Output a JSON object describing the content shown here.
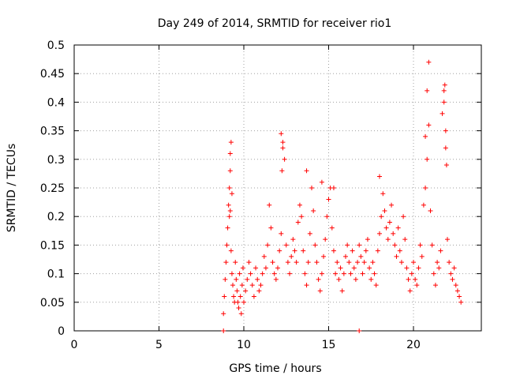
{
  "chart_data": {
    "type": "scatter",
    "title": "Day 249 of 2014, SRMTID for receiver rio1",
    "xlabel": "GPS time / hours",
    "ylabel": "SRMTID / TECUs",
    "xlim": [
      0,
      24
    ],
    "ylim": [
      0,
      0.5
    ],
    "xticks": [
      "0",
      "5",
      "10",
      "15",
      "20"
    ],
    "yticks": [
      "0",
      "0.05",
      "0.1",
      "0.15",
      "0.2",
      "0.25",
      "0.3",
      "0.35",
      "0.4",
      "0.45",
      "0.5"
    ],
    "grid": true,
    "marker": "+",
    "color": "#ff0000",
    "series": [
      {
        "x": [
          8.8,
          8.85,
          8.9,
          8.95,
          9.0,
          9.05,
          9.1,
          9.15,
          9.2,
          9.25,
          9.3,
          9.35,
          9.4,
          9.45,
          9.5,
          9.55,
          9.6,
          9.65,
          9.7,
          9.75,
          9.8,
          9.85,
          9.9,
          9.95,
          10.0,
          10.1,
          10.2,
          10.3,
          10.4,
          10.5,
          10.6,
          10.7,
          10.8,
          10.9,
          11.0,
          11.1,
          11.2,
          11.3,
          11.4,
          11.5,
          11.6,
          11.7,
          11.8,
          11.9,
          12.0,
          12.1,
          12.2,
          12.3,
          12.4,
          12.5,
          12.6,
          12.7,
          12.8,
          12.9,
          13.0,
          13.1,
          13.2,
          13.3,
          13.4,
          13.5,
          13.6,
          13.7,
          13.8,
          13.9,
          14.0,
          14.1,
          14.2,
          14.3,
          14.4,
          14.5,
          14.6,
          14.7,
          14.8,
          14.9,
          15.0,
          15.1,
          15.2,
          15.3,
          15.4,
          15.5,
          15.6,
          15.7,
          15.8,
          15.9,
          16.0,
          16.1,
          16.2,
          16.3,
          16.4,
          16.5,
          16.6,
          16.7,
          16.8,
          16.9,
          17.0,
          17.1,
          17.2,
          17.3,
          17.4,
          17.5,
          17.6,
          17.7,
          17.8,
          17.9,
          18.0,
          18.1,
          18.2,
          18.3,
          18.4,
          18.5,
          18.6,
          18.7,
          18.8,
          18.9,
          19.0,
          19.1,
          19.2,
          19.3,
          19.4,
          19.5,
          19.6,
          19.7,
          19.8,
          19.9,
          20.0,
          20.1,
          20.2,
          20.3,
          20.4,
          20.5,
          20.6,
          20.7,
          20.8,
          20.9,
          21.0,
          21.1,
          21.2,
          21.3,
          21.4,
          21.5,
          21.6,
          21.7,
          21.8,
          21.9,
          22.0,
          22.1,
          22.2,
          22.3,
          22.4,
          22.5,
          22.6,
          22.7,
          22.8,
          9.2,
          9.25,
          9.3,
          12.2,
          12.3,
          20.8,
          20.9,
          21.8,
          21.85,
          21.9,
          9.15,
          9.2,
          12.25,
          13.7,
          14.6,
          15.3,
          18.0,
          20.7,
          21.95,
          8.8,
          16.8
        ],
        "y": [
          0.03,
          0.06,
          0.09,
          0.12,
          0.15,
          0.18,
          0.22,
          0.25,
          0.28,
          0.14,
          0.1,
          0.08,
          0.06,
          0.05,
          0.12,
          0.09,
          0.07,
          0.05,
          0.04,
          0.1,
          0.06,
          0.03,
          0.08,
          0.11,
          0.05,
          0.07,
          0.09,
          0.12,
          0.1,
          0.08,
          0.06,
          0.11,
          0.09,
          0.07,
          0.08,
          0.1,
          0.13,
          0.11,
          0.15,
          0.22,
          0.18,
          0.12,
          0.1,
          0.09,
          0.11,
          0.14,
          0.17,
          0.33,
          0.3,
          0.15,
          0.12,
          0.1,
          0.13,
          0.16,
          0.14,
          0.12,
          0.19,
          0.22,
          0.2,
          0.14,
          0.1,
          0.08,
          0.12,
          0.17,
          0.25,
          0.21,
          0.15,
          0.12,
          0.09,
          0.07,
          0.1,
          0.13,
          0.16,
          0.2,
          0.23,
          0.25,
          0.18,
          0.14,
          0.1,
          0.12,
          0.09,
          0.11,
          0.07,
          0.1,
          0.13,
          0.15,
          0.12,
          0.1,
          0.14,
          0.11,
          0.09,
          0.12,
          0.15,
          0.13,
          0.1,
          0.12,
          0.14,
          0.16,
          0.11,
          0.09,
          0.12,
          0.1,
          0.08,
          0.14,
          0.17,
          0.2,
          0.24,
          0.21,
          0.18,
          0.16,
          0.19,
          0.22,
          0.17,
          0.15,
          0.13,
          0.18,
          0.14,
          0.12,
          0.2,
          0.16,
          0.11,
          0.09,
          0.07,
          0.1,
          0.12,
          0.09,
          0.08,
          0.11,
          0.15,
          0.13,
          0.22,
          0.25,
          0.3,
          0.36,
          0.21,
          0.15,
          0.1,
          0.08,
          0.12,
          0.11,
          0.14,
          0.38,
          0.42,
          0.32,
          0.16,
          0.12,
          0.1,
          0.09,
          0.11,
          0.08,
          0.07,
          0.06,
          0.05,
          0.31,
          0.33,
          0.24,
          0.345,
          0.32,
          0.42,
          0.47,
          0.4,
          0.43,
          0.35,
          0.2,
          0.21,
          0.28,
          0.28,
          0.26,
          0.25,
          0.27,
          0.34,
          0.29,
          0.0,
          0.0
        ]
      }
    ]
  }
}
